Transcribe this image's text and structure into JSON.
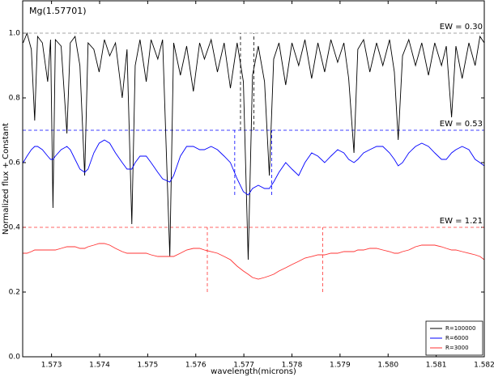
{
  "chart_data": {
    "type": "line",
    "title": "Mg(1.57701)",
    "xlabel": "wavelength(microns)",
    "ylabel": "Normalized flux + Constant",
    "xlim": [
      1.5724,
      1.582
    ],
    "ylim": [
      0,
      1.1
    ],
    "xticks": [
      1.573,
      1.574,
      1.575,
      1.576,
      1.577,
      1.578,
      1.579,
      {
        "value": 1.58,
        "label": "1.580"
      },
      1.581,
      1.582
    ],
    "yticks": [
      {
        "value": 0,
        "label": "0.0"
      },
      0.2,
      0.4,
      0.6,
      0.8,
      {
        "value": 1,
        "label": "1.0"
      }
    ],
    "legend": "lower right",
    "x": [
      1.57241,
      1.57249,
      1.57258,
      1.57265,
      1.57271,
      1.57281,
      1.57292,
      1.57298,
      1.57303,
      1.57308,
      1.5732,
      1.57332,
      1.57339,
      1.57349,
      1.57359,
      1.57369,
      1.57376,
      1.57388,
      1.57399,
      1.5741,
      1.57421,
      1.57433,
      1.57447,
      1.57457,
      1.57467,
      1.57474,
      1.57484,
      1.57497,
      1.57507,
      1.57521,
      1.57531,
      1.57546,
      1.57554,
      1.57568,
      1.57581,
      1.57595,
      1.57608,
      1.57618,
      1.57632,
      1.57645,
      1.57659,
      1.57672,
      1.57686,
      1.57699,
      1.57709,
      1.57718,
      1.5773,
      1.57743,
      1.57753,
      1.57762,
      1.57773,
      1.57787,
      1.578,
      1.57814,
      1.57827,
      1.57841,
      1.57854,
      1.57868,
      1.57881,
      1.57895,
      1.57908,
      1.57918,
      1.57929,
      1.57937,
      1.57949,
      1.57962,
      1.57976,
      1.57989,
      1.58003,
      1.58013,
      1.58021,
      1.5803,
      1.58043,
      1.58057,
      1.5807,
      1.58084,
      1.58097,
      1.58111,
      1.58121,
      1.58132,
      1.58141,
      1.58154,
      1.58168,
      1.58181,
      1.58191,
      1.582
    ],
    "series": [
      {
        "name": "R=100000",
        "color": "#000000",
        "values": [
          0.97,
          1.0,
          0.95,
          0.73,
          0.99,
          0.97,
          0.85,
          0.98,
          0.46,
          0.98,
          0.96,
          0.69,
          0.97,
          0.99,
          0.9,
          0.56,
          0.97,
          0.95,
          0.88,
          0.98,
          0.93,
          0.97,
          0.8,
          0.95,
          0.41,
          0.9,
          0.98,
          0.85,
          0.98,
          0.92,
          0.98,
          0.31,
          0.97,
          0.87,
          0.96,
          0.82,
          0.97,
          0.92,
          0.98,
          0.88,
          0.97,
          0.83,
          0.97,
          0.85,
          0.3,
          0.87,
          0.96,
          0.85,
          0.56,
          0.92,
          0.97,
          0.84,
          0.97,
          0.9,
          0.98,
          0.86,
          0.97,
          0.88,
          0.98,
          0.91,
          0.97,
          0.86,
          0.63,
          0.95,
          0.98,
          0.88,
          0.97,
          0.9,
          0.98,
          0.88,
          0.67,
          0.93,
          0.98,
          0.9,
          0.97,
          0.87,
          0.97,
          0.9,
          0.96,
          0.74,
          0.96,
          0.86,
          0.97,
          0.9,
          0.99,
          0.97
        ]
      },
      {
        "name": "R=6000",
        "color": "#0000ff",
        "values": [
          0.6,
          0.62,
          0.64,
          0.65,
          0.65,
          0.64,
          0.62,
          0.61,
          0.61,
          0.62,
          0.64,
          0.65,
          0.64,
          0.61,
          0.58,
          0.57,
          0.58,
          0.63,
          0.66,
          0.67,
          0.66,
          0.63,
          0.6,
          0.58,
          0.58,
          0.6,
          0.62,
          0.62,
          0.6,
          0.57,
          0.55,
          0.54,
          0.56,
          0.62,
          0.65,
          0.65,
          0.64,
          0.64,
          0.65,
          0.64,
          0.62,
          0.6,
          0.55,
          0.51,
          0.5,
          0.52,
          0.53,
          0.52,
          0.52,
          0.54,
          0.57,
          0.6,
          0.58,
          0.56,
          0.6,
          0.63,
          0.62,
          0.6,
          0.62,
          0.64,
          0.63,
          0.61,
          0.6,
          0.61,
          0.63,
          0.64,
          0.65,
          0.65,
          0.63,
          0.61,
          0.59,
          0.6,
          0.63,
          0.65,
          0.66,
          0.65,
          0.63,
          0.61,
          0.61,
          0.63,
          0.64,
          0.65,
          0.64,
          0.61,
          0.6,
          0.59
        ]
      },
      {
        "name": "R=3000",
        "color": "#ff3333",
        "values": [
          0.32,
          0.32,
          0.325,
          0.33,
          0.33,
          0.33,
          0.33,
          0.33,
          0.33,
          0.33,
          0.335,
          0.34,
          0.34,
          0.34,
          0.335,
          0.335,
          0.34,
          0.345,
          0.35,
          0.35,
          0.345,
          0.335,
          0.325,
          0.32,
          0.32,
          0.32,
          0.32,
          0.32,
          0.315,
          0.31,
          0.31,
          0.31,
          0.31,
          0.32,
          0.33,
          0.335,
          0.335,
          0.33,
          0.325,
          0.32,
          0.31,
          0.3,
          0.28,
          0.265,
          0.255,
          0.245,
          0.24,
          0.245,
          0.25,
          0.255,
          0.265,
          0.275,
          0.285,
          0.295,
          0.305,
          0.31,
          0.315,
          0.315,
          0.32,
          0.32,
          0.325,
          0.325,
          0.325,
          0.33,
          0.33,
          0.335,
          0.335,
          0.33,
          0.325,
          0.32,
          0.32,
          0.325,
          0.33,
          0.34,
          0.345,
          0.345,
          0.345,
          0.34,
          0.335,
          0.33,
          0.33,
          0.325,
          0.32,
          0.315,
          0.31,
          0.3
        ]
      }
    ],
    "reference_lines": [
      {
        "value": 1.0,
        "color": "#888888",
        "label": "EW = 0.30",
        "label_color": "#000000"
      },
      {
        "value": 0.7,
        "color": "#0000ff",
        "label": "EW = 0.53",
        "label_color": "#0000ff"
      },
      {
        "value": 0.4,
        "color": "#ff3333",
        "label": "EW = 1.21",
        "label_color": "#ff0000"
      }
    ],
    "windows": [
      {
        "x": [
          1.57693,
          1.57721
        ],
        "y": [
          0.7,
          1.0
        ],
        "color": "#000000"
      },
      {
        "x": [
          1.57681,
          1.57758
        ],
        "y": [
          0.5,
          0.7
        ],
        "color": "#0000ff"
      },
      {
        "x": [
          1.57624,
          1.57864
        ],
        "y": [
          0.2,
          0.4
        ],
        "color": "#ff3333"
      }
    ]
  }
}
